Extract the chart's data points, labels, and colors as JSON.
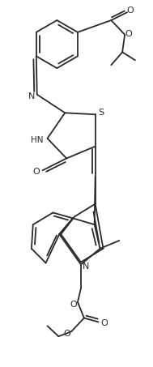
{
  "bg_color": "#ffffff",
  "line_color": "#2a2a2a",
  "line_width": 1.3,
  "figsize": [
    1.89,
    4.53
  ],
  "dpi": 100,
  "atoms": {
    "S": "S",
    "HN": "HN",
    "O": "O",
    "N": "N"
  }
}
